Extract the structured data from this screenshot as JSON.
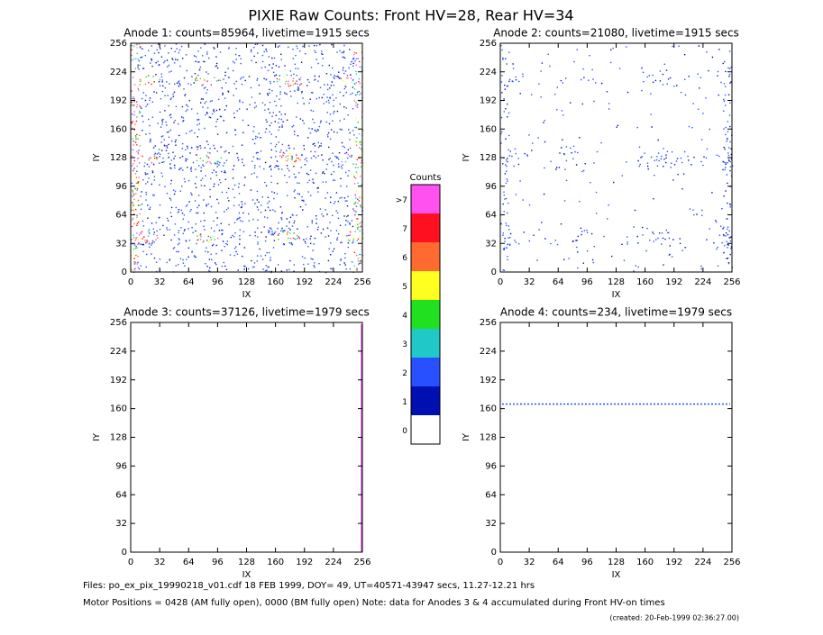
{
  "title": "PIXIE Raw Counts:  Front HV=28, Rear HV=34",
  "chart_data": [
    {
      "type": "heatmap",
      "title": "Anode 1: counts=85964, livetime=1915 secs",
      "xlabel": "IX",
      "ylabel": "IY",
      "xlim": [
        0,
        256
      ],
      "ylim": [
        0,
        256
      ],
      "xticks": [
        0,
        32,
        64,
        96,
        128,
        160,
        192,
        224,
        256
      ],
      "yticks": [
        0,
        32,
        64,
        96,
        128,
        160,
        192,
        224,
        256
      ]
    },
    {
      "type": "heatmap",
      "title": "Anode 2: counts=21080, livetime=1915 secs",
      "xlabel": "IX",
      "ylabel": "IY",
      "xlim": [
        0,
        256
      ],
      "ylim": [
        0,
        256
      ],
      "xticks": [
        0,
        32,
        64,
        96,
        128,
        160,
        192,
        224,
        256
      ],
      "yticks": [
        0,
        32,
        64,
        96,
        128,
        160,
        192,
        224,
        256
      ]
    },
    {
      "type": "heatmap",
      "title": "Anode 3: counts=37126, livetime=1979 secs",
      "xlabel": "IX",
      "ylabel": "IY",
      "xlim": [
        0,
        256
      ],
      "ylim": [
        0,
        256
      ],
      "xticks": [
        0,
        32,
        64,
        96,
        128,
        160,
        192,
        224,
        256
      ],
      "yticks": [
        0,
        32,
        64,
        96,
        128,
        160,
        192,
        224,
        256
      ]
    },
    {
      "type": "heatmap",
      "title": "Anode 4: counts=234, livetime=1979 secs",
      "xlabel": "IX",
      "ylabel": "IY",
      "xlim": [
        0,
        256
      ],
      "ylim": [
        0,
        256
      ],
      "xticks": [
        0,
        32,
        64,
        96,
        128,
        160,
        192,
        224,
        256
      ],
      "yticks": [
        0,
        32,
        64,
        96,
        128,
        160,
        192,
        224,
        256
      ]
    },
    {
      "type": "colorbar",
      "title": "Counts",
      "labels": [
        "0",
        "1",
        "2",
        "3",
        "4",
        "5",
        "6",
        "7",
        ">7"
      ],
      "colors": [
        "#ffffff",
        "#0010b0",
        "#2850ff",
        "#20c8c8",
        "#20e020",
        "#ffff20",
        "#ff6a30",
        "#ff1020",
        "#ff50f0"
      ]
    }
  ],
  "footer": [
    "Files: po_ex_pix_19990218_v01.cdf    18 FEB 1999, DOY= 49, UT=40571-43947 secs, 11.27-12.21 hrs",
    "Motor Positions = 0428 (AM fully open), 0000 (BM fully open)    Note: data for Anodes 3 & 4 accumulated during Front HV-on times",
    "(created: 20-Feb-1999 02:36:27.00)"
  ]
}
